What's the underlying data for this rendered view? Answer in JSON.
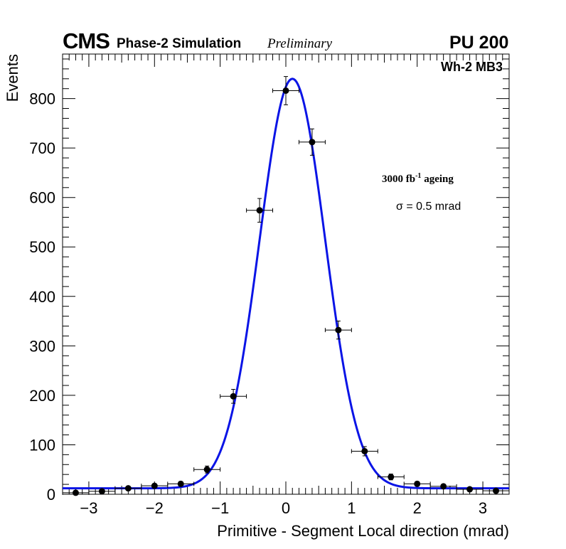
{
  "header": {
    "experiment": "CMS",
    "simulation": "Phase-2 Simulation",
    "status": "Preliminary",
    "pileup": "PU 200"
  },
  "labels": {
    "station": "Wh-2 MB3",
    "ageing_pre": "3000 fb",
    "ageing_exp": "-1",
    "ageing_post": " ageing",
    "resolution": "σ = 0.5 mrad"
  },
  "colors": {
    "fit": "#0a14e6",
    "points": "#000000",
    "axes": "#000000"
  },
  "chart_data": {
    "type": "scatter",
    "title": "",
    "xlabel": "Primitive - Segment Local direction (mrad)",
    "ylabel": "Events",
    "xlim": [
      -3.4,
      3.4
    ],
    "ylim": [
      0,
      890
    ],
    "xticks": [
      -3,
      -2,
      -1,
      0,
      1,
      2,
      3
    ],
    "xtick_labels": [
      "−3",
      "−2",
      "−1",
      "0",
      "1",
      "2",
      "3"
    ],
    "yticks": [
      0,
      100,
      200,
      300,
      400,
      500,
      600,
      700,
      800
    ],
    "ytick_labels": [
      "0",
      "100",
      "200",
      "300",
      "400",
      "500",
      "600",
      "700",
      "800"
    ],
    "bin_half_width": 0.2,
    "series": [
      {
        "name": "data",
        "x": [
          -3.2,
          -2.8,
          -2.4,
          -2.0,
          -1.6,
          -1.2,
          -0.8,
          -0.4,
          0.0,
          0.4,
          0.8,
          1.2,
          1.6,
          2.0,
          2.4,
          2.8,
          3.2
        ],
        "y": [
          3,
          6,
          12,
          17,
          21,
          50,
          198,
          574,
          816,
          712,
          332,
          87,
          35,
          21,
          16,
          10,
          7
        ]
      },
      {
        "name": "gaussian fit",
        "constant": 828,
        "mean": 0.1,
        "sigma": 0.5,
        "background": 12
      }
    ]
  }
}
